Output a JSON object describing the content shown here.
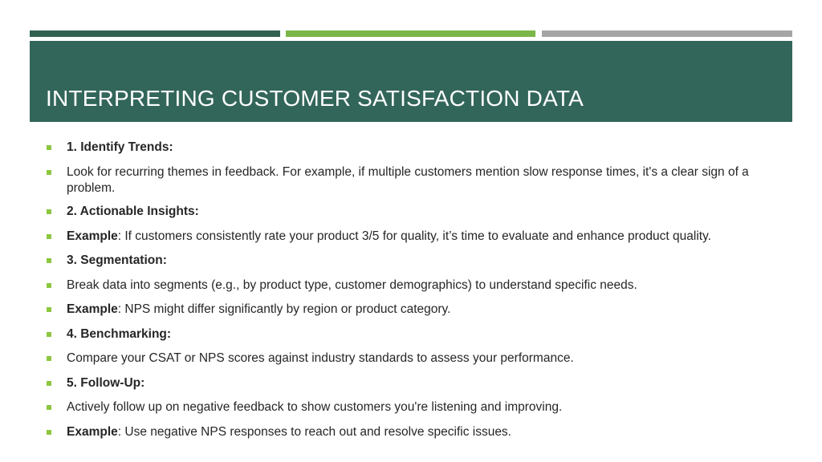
{
  "slide": {
    "title": "INTERPRETING CUSTOMER SATISFACTION DATA",
    "colors": {
      "title_band": "#33665a",
      "bar_dark": "#33614f",
      "bar_green": "#7ab648",
      "bar_gray": "#a5a5a5",
      "bullet": "#8dc63f"
    },
    "items": [
      {
        "bold": "1. Identify Trends:",
        "text": ""
      },
      {
        "bold": "",
        "text": "Look for recurring themes in feedback. For example, if multiple customers mention slow response times, it's a clear sign of a problem."
      },
      {
        "bold": "2. Actionable Insights:",
        "text": ""
      },
      {
        "bold": "Example",
        "text": ": If customers consistently rate your product 3/5 for quality, it’s time to evaluate and enhance product quality."
      },
      {
        "bold": "3. Segmentation:",
        "text": ""
      },
      {
        "bold": "",
        "text": "Break data into segments (e.g., by product type, customer demographics) to understand specific needs."
      },
      {
        "bold": "Example",
        "text": ": NPS might differ significantly by region or product category."
      },
      {
        "bold": "4. Benchmarking:",
        "text": ""
      },
      {
        "bold": "",
        "text": "Compare your CSAT or NPS scores against industry standards to assess your performance."
      },
      {
        "bold": "5. Follow-Up:",
        "text": ""
      },
      {
        "bold": "",
        "text": "Actively follow up on negative feedback to show customers you're listening and improving."
      },
      {
        "bold": "Example",
        "text": ": Use negative NPS responses to reach out and resolve specific issues."
      }
    ]
  }
}
